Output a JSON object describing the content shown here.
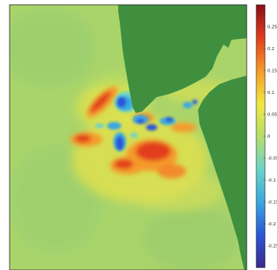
{
  "colors": {
    "land": "#3f8f3f",
    "sea_base": "#a9d46a",
    "frame": "#222222",
    "colorbar_stops": [
      "#3a2a8a",
      "#2a55d8",
      "#3aa8e0",
      "#6cd3c8",
      "#b6de6a",
      "#f2e640",
      "#f59a2a",
      "#e23c1e",
      "#8a0e18"
    ]
  },
  "colorbar": {
    "min": -0.3,
    "max": 0.3,
    "ticks": [
      {
        "value": 0.25,
        "label": "0.25"
      },
      {
        "value": 0.2,
        "label": "0.2"
      },
      {
        "value": 0.15,
        "label": "0.15"
      },
      {
        "value": 0.1,
        "label": "0.1"
      },
      {
        "value": 0.05,
        "label": "0.05"
      },
      {
        "value": 0,
        "label": "0"
      },
      {
        "value": -0.05,
        "label": "-0.05"
      },
      {
        "value": -0.1,
        "label": "-0.1"
      },
      {
        "value": -0.15,
        "label": "-0.15"
      },
      {
        "value": -0.2,
        "label": "-0.2"
      },
      {
        "value": -0.25,
        "label": "-0.25"
      }
    ]
  }
}
